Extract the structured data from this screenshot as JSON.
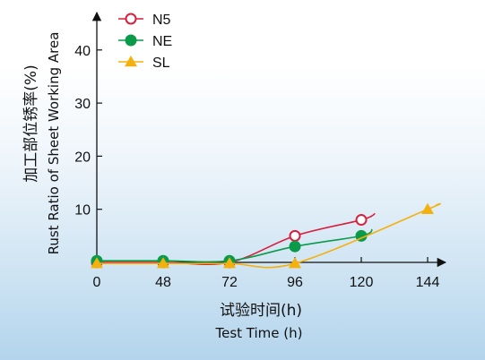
{
  "chart_data": {
    "type": "line",
    "x_axis": {
      "ticks": [
        0,
        48,
        72,
        96,
        120,
        144
      ],
      "title_cn": "试验时间(h)",
      "title_en": "Test Time (h)"
    },
    "y_axis": {
      "ticks": [
        10,
        20,
        30,
        40
      ],
      "title_cn": "加工部位锈率(%)",
      "title_en": "Rust Ratio of Sheet Working Area"
    },
    "xlim": [
      0,
      150
    ],
    "ylim": [
      0,
      47
    ],
    "legend_position": "top-left",
    "series": [
      {
        "name": "N5",
        "marker": "open-circle",
        "color": "#d81f3c",
        "points": [
          [
            0,
            0
          ],
          [
            48,
            0
          ],
          [
            72,
            0
          ],
          [
            96,
            5
          ],
          [
            120,
            8
          ]
        ],
        "curve_end": [
          125,
          9.2
        ]
      },
      {
        "name": "NE",
        "marker": "filled-circle",
        "color": "#0a9a4a",
        "points": [
          [
            0,
            0.3
          ],
          [
            48,
            0.3
          ],
          [
            72,
            0.3
          ],
          [
            96,
            3
          ],
          [
            120,
            5
          ]
        ],
        "curve_end": [
          124,
          6.2
        ]
      },
      {
        "name": "SL",
        "marker": "filled-triangle",
        "color": "#f4b10d",
        "points": [
          [
            0,
            -0.2
          ],
          [
            48,
            -0.2
          ],
          [
            72,
            -0.2
          ],
          [
            96,
            -0.2
          ],
          [
            144,
            10
          ]
        ],
        "curve_end": [
          147,
          10.8
        ]
      }
    ]
  }
}
